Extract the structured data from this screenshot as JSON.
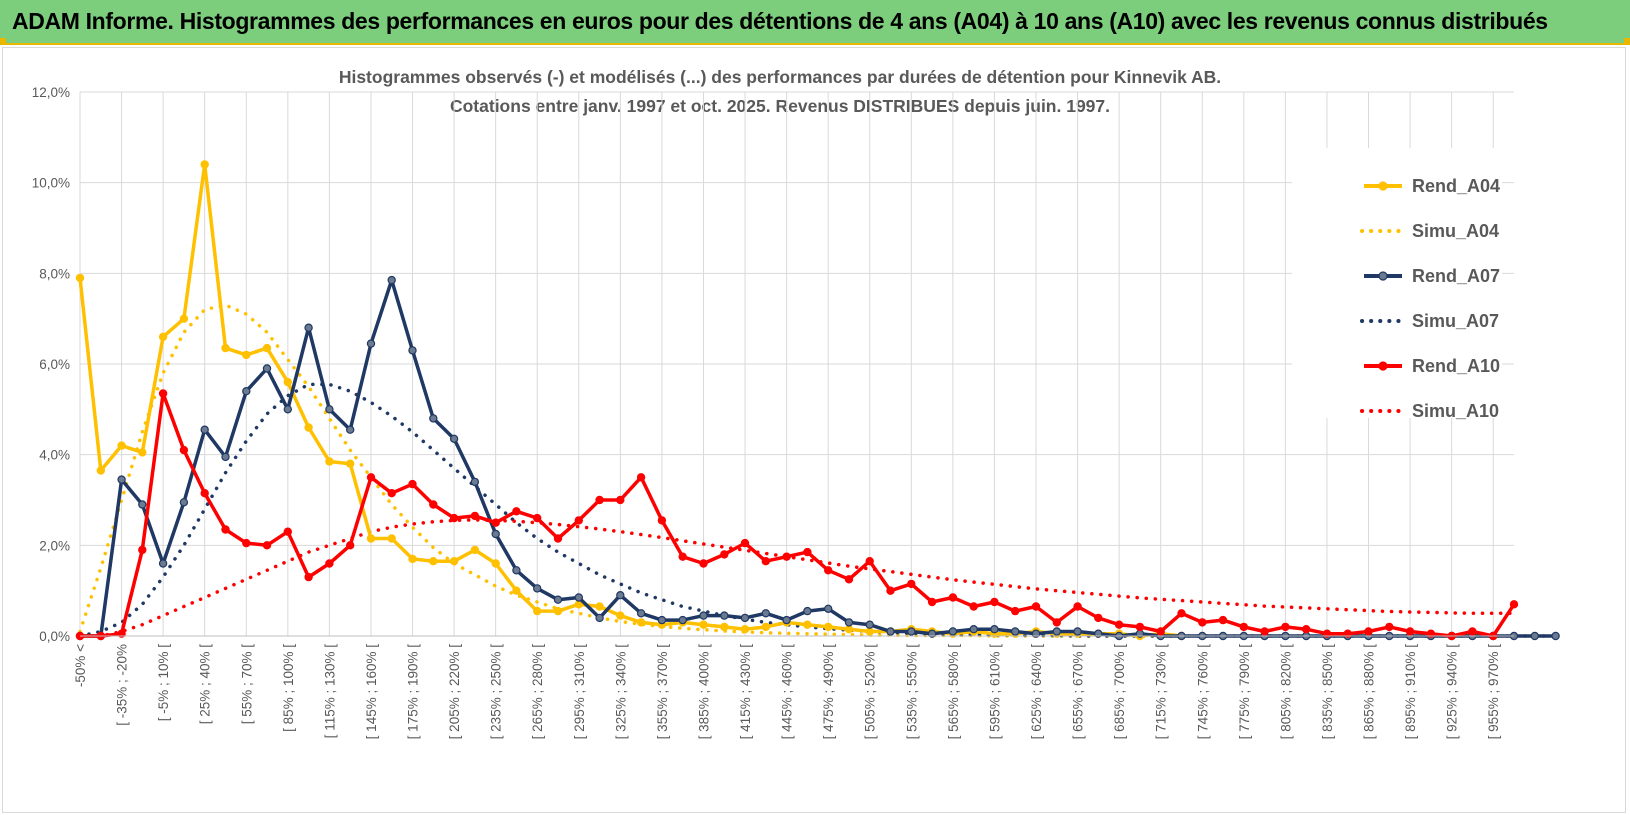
{
  "banner": {
    "title": "ADAM Informe. Histogrammes des performances en euros pour des détentions de 4 ans (A04) à 10 ans (A10) avec les revenus connus distribués"
  },
  "colors": {
    "banner_bg": "#7ccd7c",
    "banner_accent": "#e8b800",
    "gold": "#ffc000",
    "navy": "#1f3864",
    "red": "#ff0000",
    "grid": "#d9d9d9",
    "text": "#595959"
  },
  "chart_data": {
    "type": "line",
    "title": "Histogrammes observés (-) et modélisés (...) des performances par durées de détention pour Kinnevik AB.",
    "subtitle": "Cotations entre janv. 1997 et oct. 2025. Revenus DISTRIBUES depuis juin. 1997.",
    "xlabel": "",
    "ylabel": "",
    "ylim": [
      0,
      12
    ],
    "yticks": [
      "0,0%",
      "2,0%",
      "4,0%",
      "6,0%",
      "8,0%",
      "10,0%",
      "12,0%"
    ],
    "grid": true,
    "legend_position": "right",
    "x_labels": [
      "-50% <",
      "[ -35% ; -20%",
      "[ -5% ; 10% [",
      "[ 25% ; 40% [",
      "[ 55% ; 70% [",
      "[ 85% ; 100% [",
      "[ 115% ; 130% [",
      "[ 145% ; 160% [",
      "[ 175% ; 190% [",
      "[ 205% ; 220% [",
      "[ 235% ; 250% [",
      "[ 265% ; 280% [",
      "[ 295% ; 310% [",
      "[ 325% ; 340% [",
      "[ 355% ; 370% [",
      "[ 385% ; 400% [",
      "[ 415% ; 430% [",
      "[ 445% ; 460% [",
      "[ 475% ; 490% [",
      "[ 505% ; 520% [",
      "[ 535% ; 550% [",
      "[ 565% ; 580% [",
      "[ 595% ; 610% [",
      "[ 625% ; 640% [",
      "[ 655% ; 670% [",
      "[ 685% ; 700% [",
      "[ 715% ; 730% [",
      "[ 745% ; 760% [",
      "[ 775% ; 790% [",
      "[ 805% ; 820% [",
      "[ 835% ; 850% [",
      "[ 865% ; 880% [",
      "[ 895% ; 910% [",
      "[ 925% ; 940% [",
      "[ 955% ; 970% ["
    ],
    "series": [
      {
        "name": "Rend_A04",
        "style": "solid",
        "color": "#ffc000",
        "values": [
          7.9,
          3.65,
          4.2,
          4.05,
          6.6,
          7.0,
          10.4,
          6.35,
          6.2,
          6.35,
          5.6,
          4.6,
          3.85,
          3.8,
          2.15,
          2.15,
          1.7,
          1.65,
          1.65,
          1.9,
          1.6,
          1.0,
          0.55,
          0.55,
          0.7,
          0.65,
          0.45,
          0.3,
          0.25,
          0.3,
          0.25,
          0.2,
          0.15,
          0.2,
          0.3,
          0.25,
          0.2,
          0.15,
          0.1,
          0.1,
          0.15,
          0.1,
          0.05,
          0.1,
          0.05,
          0.05,
          0.1,
          0.05,
          0.05,
          0.05,
          0.05,
          0.0,
          0.05,
          0.0
        ]
      },
      {
        "name": "Simu_A04",
        "style": "dotted",
        "color": "#ffc000",
        "values": [
          0.1,
          1.5,
          3.0,
          4.5,
          5.8,
          6.7,
          7.2,
          7.3,
          7.1,
          6.7,
          6.1,
          5.5,
          4.8,
          4.1,
          3.5,
          2.9,
          2.4,
          1.95,
          1.6,
          1.35,
          1.1,
          0.9,
          0.75,
          0.6,
          0.5,
          0.4,
          0.32,
          0.26,
          0.21,
          0.17,
          0.14,
          0.11,
          0.09,
          0.07,
          0.06,
          0.05,
          0.04,
          0.03,
          0.02,
          0.02,
          0.01,
          0.01,
          0.01,
          0.01,
          0.0,
          0.0,
          0.0,
          0.0,
          0.0,
          0.0,
          0.0,
          0.0,
          0.0,
          0.0
        ]
      },
      {
        "name": "Rend_A07",
        "style": "solid",
        "color": "#1f3864",
        "values": [
          0.0,
          0.0,
          3.45,
          2.9,
          1.6,
          2.95,
          4.55,
          3.95,
          5.4,
          5.9,
          5.0,
          6.8,
          5.0,
          4.55,
          6.45,
          7.85,
          6.3,
          4.8,
          4.35,
          3.4,
          2.25,
          1.45,
          1.05,
          0.8,
          0.85,
          0.4,
          0.9,
          0.5,
          0.35,
          0.35,
          0.45,
          0.45,
          0.4,
          0.5,
          0.35,
          0.55,
          0.6,
          0.3,
          0.25,
          0.1,
          0.1,
          0.05,
          0.1,
          0.15,
          0.15,
          0.1,
          0.05,
          0.1,
          0.1,
          0.05,
          0.0,
          0.05,
          0.0,
          0.0,
          0.0,
          0.0,
          0.0,
          0.0,
          0.0,
          0.0,
          0.0,
          0.0,
          0.0,
          0.0,
          0.0,
          0.0,
          0.0,
          0.0,
          0.0,
          0.0,
          0.0,
          0.0
        ]
      },
      {
        "name": "Simu_A07",
        "style": "dotted",
        "color": "#1f3864",
        "values": [
          0.0,
          0.1,
          0.3,
          0.7,
          1.3,
          2.0,
          2.8,
          3.6,
          4.3,
          4.9,
          5.3,
          5.55,
          5.55,
          5.4,
          5.15,
          4.85,
          4.5,
          4.1,
          3.7,
          3.3,
          2.9,
          2.5,
          2.15,
          1.85,
          1.6,
          1.35,
          1.15,
          0.95,
          0.8,
          0.65,
          0.55,
          0.45,
          0.37,
          0.3,
          0.25,
          0.2,
          0.16,
          0.13,
          0.1,
          0.08,
          0.06,
          0.05,
          0.04,
          0.03,
          0.02,
          0.02,
          0.01,
          0.01,
          0.0,
          0.0,
          0.0,
          0.0,
          0.0,
          0.0,
          0.0,
          0.0,
          0.0,
          0.0,
          0.0,
          0.0,
          0.0,
          0.0,
          0.0,
          0.0,
          0.0,
          0.0,
          0.0,
          0.0,
          0.0,
          0.0,
          0.0,
          0.0
        ]
      },
      {
        "name": "Rend_A10",
        "style": "solid",
        "color": "#ff0000",
        "values": [
          0.0,
          0.0,
          0.05,
          1.9,
          5.35,
          4.1,
          3.15,
          2.35,
          2.05,
          2.0,
          2.3,
          1.3,
          1.6,
          2.0,
          3.5,
          3.15,
          3.35,
          2.9,
          2.6,
          2.65,
          2.5,
          2.75,
          2.6,
          2.15,
          2.55,
          3.0,
          3.0,
          3.5,
          2.55,
          1.75,
          1.6,
          1.8,
          2.05,
          1.65,
          1.75,
          1.85,
          1.45,
          1.25,
          1.65,
          1.0,
          1.15,
          0.75,
          0.85,
          0.65,
          0.75,
          0.55,
          0.65,
          0.3,
          0.65,
          0.4,
          0.25,
          0.2,
          0.1,
          0.5,
          0.3,
          0.35,
          0.2,
          0.1,
          0.2,
          0.15,
          0.05,
          0.05,
          0.1,
          0.2,
          0.1,
          0.05,
          0.0,
          0.1,
          0.0,
          0.7
        ]
      },
      {
        "name": "Simu_A10",
        "style": "dotted",
        "color": "#ff0000",
        "values": [
          0.0,
          0.0,
          0.1,
          0.25,
          0.45,
          0.65,
          0.85,
          1.05,
          1.25,
          1.45,
          1.65,
          1.85,
          2.0,
          2.15,
          2.3,
          2.4,
          2.47,
          2.52,
          2.55,
          2.56,
          2.55,
          2.53,
          2.5,
          2.46,
          2.41,
          2.36,
          2.3,
          2.24,
          2.17,
          2.1,
          2.03,
          1.96,
          1.89,
          1.82,
          1.75,
          1.68,
          1.61,
          1.54,
          1.48,
          1.42,
          1.36,
          1.3,
          1.24,
          1.19,
          1.14,
          1.09,
          1.04,
          1.0,
          0.96,
          0.92,
          0.88,
          0.84,
          0.81,
          0.78,
          0.75,
          0.72,
          0.69,
          0.66,
          0.64,
          0.62,
          0.6,
          0.58,
          0.56,
          0.54,
          0.53,
          0.52,
          0.51,
          0.5,
          0.5,
          0.5
        ]
      }
    ]
  }
}
